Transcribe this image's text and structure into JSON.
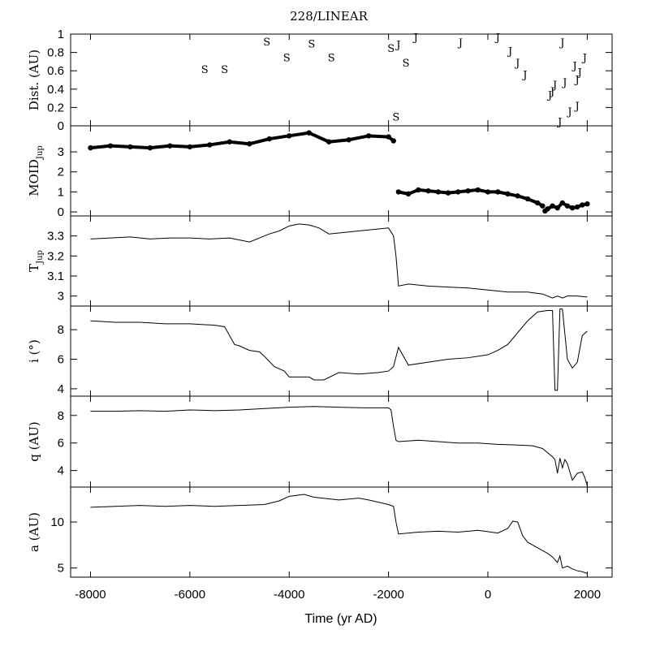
{
  "chart_data": {
    "type": "line",
    "title": "228/LINEAR",
    "xlabel": "Time (yr AD)",
    "xlim": [
      -8400,
      2500
    ],
    "xticks": [
      "-8000",
      "-6000",
      "-4000",
      "-2000",
      "0",
      "2000"
    ],
    "xtick_values": [
      -8000,
      -6000,
      -4000,
      -2000,
      0,
      2000
    ],
    "panels": [
      {
        "name": "distance",
        "ylabel": "Dist. (AU)",
        "ylim": [
          0,
          1
        ],
        "yticks": [
          "0",
          "0.2",
          "0.4",
          "0.6",
          "0.8",
          "1"
        ],
        "ytick_values": [
          0,
          0.2,
          0.4,
          0.6,
          0.8,
          1
        ],
        "encounters": [
          {
            "planet": "S",
            "x": -5700,
            "y": 0.62
          },
          {
            "planet": "S",
            "x": -5300,
            "y": 0.62
          },
          {
            "planet": "S",
            "x": -4450,
            "y": 0.92
          },
          {
            "planet": "S",
            "x": -4050,
            "y": 0.75
          },
          {
            "planet": "S",
            "x": -3550,
            "y": 0.9
          },
          {
            "planet": "S",
            "x": -3150,
            "y": 0.75
          },
          {
            "planet": "S",
            "x": -1950,
            "y": 0.85
          },
          {
            "planet": "S",
            "x": -1850,
            "y": 0.1
          },
          {
            "planet": "S",
            "x": -1650,
            "y": 0.69
          },
          {
            "planet": "J",
            "x": -1800,
            "y": 0.89
          },
          {
            "planet": "J",
            "x": -1450,
            "y": 0.97
          },
          {
            "planet": "J",
            "x": -550,
            "y": 0.91
          },
          {
            "planet": "J",
            "x": 200,
            "y": 0.97
          },
          {
            "planet": "J",
            "x": 450,
            "y": 0.82
          },
          {
            "planet": "J",
            "x": 600,
            "y": 0.69
          },
          {
            "planet": "J",
            "x": 750,
            "y": 0.56
          },
          {
            "planet": "J",
            "x": 1250,
            "y": 0.34
          },
          {
            "planet": "J",
            "x": 1300,
            "y": 0.38
          },
          {
            "planet": "J",
            "x": 1350,
            "y": 0.45
          },
          {
            "planet": "J",
            "x": 1450,
            "y": 0.05
          },
          {
            "planet": "J",
            "x": 1500,
            "y": 0.91
          },
          {
            "planet": "J",
            "x": 1550,
            "y": 0.48
          },
          {
            "planet": "J",
            "x": 1650,
            "y": 0.16
          },
          {
            "planet": "J",
            "x": 1750,
            "y": 0.66
          },
          {
            "planet": "J",
            "x": 1800,
            "y": 0.51
          },
          {
            "planet": "J",
            "x": 1800,
            "y": 0.22
          },
          {
            "planet": "J",
            "x": 1850,
            "y": 0.59
          },
          {
            "planet": "J",
            "x": 1950,
            "y": 0.75
          }
        ]
      },
      {
        "name": "moid",
        "ylabel": "MOID",
        "ylabel_sub": "Jup",
        "ylim": [
          -0.2,
          4.3
        ],
        "yticks": [
          "0",
          "1",
          "2",
          "3"
        ],
        "ytick_values": [
          0,
          1,
          2,
          3
        ],
        "style": "dots",
        "series": [
          {
            "x": [
              -8000,
              -7600,
              -7200,
              -6800,
              -6400,
              -6000,
              -5600,
              -5200,
              -4800,
              -4400,
              -4000,
              -3600,
              -3200,
              -2800,
              -2400,
              -2000,
              -1900
            ],
            "y": [
              3.2,
              3.3,
              3.25,
              3.2,
              3.3,
              3.25,
              3.35,
              3.5,
              3.4,
              3.65,
              3.8,
              3.95,
              3.5,
              3.6,
              3.8,
              3.75,
              3.55
            ]
          },
          {
            "x": [
              -1800,
              -1600,
              -1400,
              -1200,
              -1000,
              -800,
              -600,
              -400,
              -200,
              0,
              200,
              400,
              600,
              800,
              1000,
              1100
            ],
            "y": [
              1.0,
              0.9,
              1.1,
              1.05,
              1.0,
              0.95,
              1.0,
              1.05,
              1.1,
              1.0,
              1.0,
              0.9,
              0.8,
              0.65,
              0.45,
              0.3
            ]
          },
          {
            "x": [
              1150,
              1200,
              1300,
              1400,
              1500,
              1600,
              1700,
              1800,
              1900,
              2000
            ],
            "y": [
              0.05,
              0.15,
              0.3,
              0.2,
              0.45,
              0.3,
              0.2,
              0.25,
              0.35,
              0.4
            ]
          }
        ]
      },
      {
        "name": "tisserand",
        "ylabel": "T",
        "ylabel_sub": "Jup",
        "ylim": [
          2.95,
          3.4
        ],
        "yticks": [
          "3",
          "3.1",
          "3.2",
          "3.3"
        ],
        "ytick_values": [
          3,
          3.1,
          3.2,
          3.3
        ],
        "style": "line",
        "series": [
          {
            "x": [
              -8000,
              -7600,
              -7200,
              -6800,
              -6400,
              -6000,
              -5600,
              -5200,
              -4800,
              -4400,
              -4200,
              -4000,
              -3800,
              -3600,
              -3400,
              -3200,
              -2800,
              -2400,
              -2000,
              -1900,
              -1850,
              -1800,
              -1600,
              -1200,
              -800,
              -400,
              0,
              400,
              800,
              1100,
              1300,
              1400,
              1500,
              1600,
              1800,
              2000
            ],
            "y": [
              3.285,
              3.29,
              3.295,
              3.285,
              3.29,
              3.29,
              3.285,
              3.29,
              3.27,
              3.31,
              3.325,
              3.35,
              3.36,
              3.355,
              3.34,
              3.31,
              3.32,
              3.33,
              3.34,
              3.3,
              3.2,
              3.05,
              3.06,
              3.05,
              3.045,
              3.04,
              3.03,
              3.02,
              3.02,
              3.01,
              2.99,
              3.0,
              2.99,
              3.0,
              3.0,
              2.995
            ]
          }
        ]
      },
      {
        "name": "inclination",
        "ylabel": "i (°)",
        "ylim": [
          3.5,
          9.6
        ],
        "yticks": [
          "4",
          "6",
          "8"
        ],
        "ytick_values": [
          4,
          6,
          8
        ],
        "style": "line",
        "series": [
          {
            "x": [
              -8000,
              -7500,
              -7000,
              -6500,
              -6000,
              -5500,
              -5300,
              -5100,
              -5000,
              -4800,
              -4600,
              -4500,
              -4300,
              -4100,
              -4000,
              -3600,
              -3500,
              -3300,
              -3000,
              -2600,
              -2200,
              -2000,
              -1900,
              -1800,
              -1700,
              -1600,
              -1200,
              -800,
              -400,
              0,
              200,
              400,
              600,
              800,
              1000,
              1200,
              1300,
              1350,
              1400,
              1450,
              1500,
              1600,
              1700,
              1800,
              1900,
              2000
            ],
            "y": [
              8.6,
              8.5,
              8.5,
              8.4,
              8.4,
              8.3,
              8.2,
              7.0,
              6.9,
              6.6,
              6.5,
              6.2,
              5.5,
              5.2,
              4.8,
              4.8,
              4.6,
              4.6,
              5.1,
              5.0,
              5.1,
              5.2,
              5.5,
              6.8,
              6.2,
              5.6,
              5.8,
              6.0,
              6.1,
              6.3,
              6.6,
              7.0,
              7.8,
              8.6,
              9.2,
              9.3,
              9.3,
              3.9,
              3.9,
              9.4,
              9.4,
              6.0,
              5.4,
              5.8,
              7.6,
              7.9
            ]
          }
        ]
      },
      {
        "name": "perihelion",
        "ylabel": "q (AU)",
        "ylim": [
          2.8,
          9.4
        ],
        "yticks": [
          "4",
          "6",
          "8"
        ],
        "ytick_values": [
          4,
          6,
          8
        ],
        "style": "line",
        "series": [
          {
            "x": [
              -8000,
              -7500,
              -7000,
              -6500,
              -6000,
              -5500,
              -5000,
              -4500,
              -4000,
              -3500,
              -3000,
              -2500,
              -2000,
              -1950,
              -1900,
              -1850,
              -1800,
              -1400,
              -1000,
              -600,
              -200,
              200,
              600,
              900,
              1100,
              1200,
              1300,
              1350,
              1400,
              1450,
              1500,
              1550,
              1600,
              1700,
              1800,
              1900,
              1950,
              2000
            ],
            "y": [
              8.3,
              8.3,
              8.35,
              8.3,
              8.4,
              8.35,
              8.4,
              8.5,
              8.6,
              8.65,
              8.6,
              8.55,
              8.55,
              8.4,
              7.2,
              6.2,
              6.1,
              6.2,
              6.1,
              6.0,
              6.0,
              5.9,
              5.85,
              5.8,
              5.6,
              5.3,
              5.0,
              4.8,
              3.8,
              4.9,
              4.2,
              4.8,
              4.5,
              3.3,
              3.8,
              3.9,
              3.5,
              2.9
            ]
          }
        ]
      },
      {
        "name": "semimajor",
        "ylabel": "a (AU)",
        "ylim": [
          4,
          13.8
        ],
        "yticks": [
          "5",
          "10"
        ],
        "ytick_values": [
          5,
          10
        ],
        "style": "line",
        "series": [
          {
            "x": [
              -8000,
              -7500,
              -7000,
              -6500,
              -6000,
              -5500,
              -5000,
              -4500,
              -4200,
              -4000,
              -3700,
              -3500,
              -3000,
              -2600,
              -2400,
              -2000,
              -1900,
              -1850,
              -1800,
              -1400,
              -1000,
              -600,
              -200,
              200,
              400,
              500,
              600,
              700,
              800,
              1000,
              1200,
              1300,
              1400,
              1450,
              1500,
              1600,
              1700,
              1800,
              1900,
              2000
            ],
            "y": [
              11.6,
              11.7,
              11.8,
              11.7,
              11.8,
              11.7,
              11.8,
              11.9,
              12.3,
              12.8,
              13.0,
              12.7,
              12.4,
              12.6,
              12.4,
              11.9,
              11.7,
              10.0,
              8.7,
              8.9,
              9.0,
              8.9,
              9.1,
              8.8,
              9.3,
              10.1,
              10.0,
              8.5,
              7.8,
              7.2,
              6.6,
              6.2,
              5.6,
              6.3,
              5.0,
              5.2,
              4.9,
              4.7,
              4.6,
              4.4
            ]
          }
        ]
      }
    ]
  }
}
